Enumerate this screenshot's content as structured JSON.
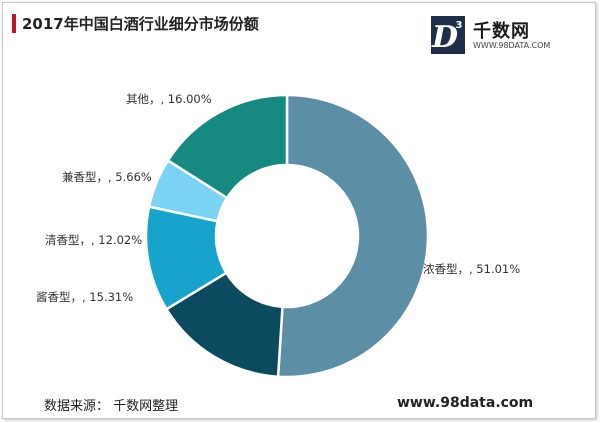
{
  "logo": {
    "name": "千数网",
    "url": "WWW.98DATA.COM",
    "badge_letter": "D",
    "badge_superscript": "3"
  },
  "chart_data": {
    "type": "pie",
    "title": "2017年中国白酒行业细分市场份额",
    "donut": true,
    "slices": [
      {
        "name": "浓香型",
        "value": 51.01,
        "label": "浓香型，, 51.01%",
        "color": "#5c8fa6"
      },
      {
        "name": "酱香型",
        "value": 15.31,
        "label": "酱香型，, 15.31%",
        "color": "#0c4a60"
      },
      {
        "name": "清香型",
        "value": 12.02,
        "label": "清香型，, 12.02%",
        "color": "#17a3cc"
      },
      {
        "name": "兼香型",
        "value": 5.66,
        "label": "兼香型，, 5.66%",
        "color": "#7ad3f2"
      },
      {
        "name": "其他",
        "value": 16.0,
        "label": "其他，, 16.00%",
        "color": "#168a80"
      }
    ]
  },
  "footer": {
    "source": "数据来源： 千数网整理",
    "site": "www.98data.com"
  }
}
